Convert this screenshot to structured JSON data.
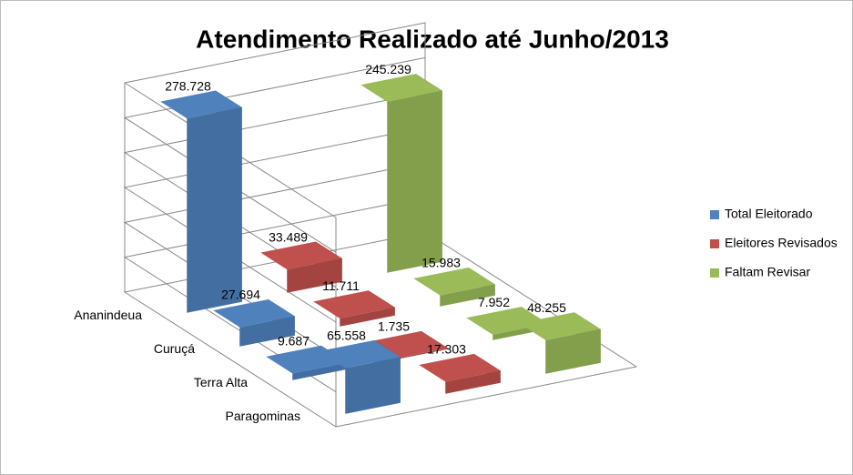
{
  "chart_data": {
    "type": "bar3d",
    "title": "Atendimento  Realizado até Junho/2013",
    "categories": [
      "Ananindeua",
      "Curuçá",
      "Terra Alta",
      "Paragominas"
    ],
    "series": [
      {
        "name": "Total Eleitorado",
        "color": "#4f81bd",
        "values": [
          278728,
          27694,
          9687,
          65558
        ],
        "value_labels": [
          "278.728",
          "27.694",
          "9.687",
          "65.558"
        ]
      },
      {
        "name": "Eleitores Revisados",
        "color": "#c0504d",
        "values": [
          33489,
          11711,
          1735,
          17303
        ],
        "value_labels": [
          "33.489",
          "11.711",
          "1.735",
          "17.303"
        ]
      },
      {
        "name": "Faltam Revisar",
        "color": "#9bbb59",
        "values": [
          245239,
          15983,
          7952,
          48255
        ],
        "value_labels": [
          "245.239",
          "15.983",
          "7.952",
          "48.255"
        ]
      }
    ],
    "ylim": [
      0,
      300000
    ],
    "legend": "right"
  }
}
